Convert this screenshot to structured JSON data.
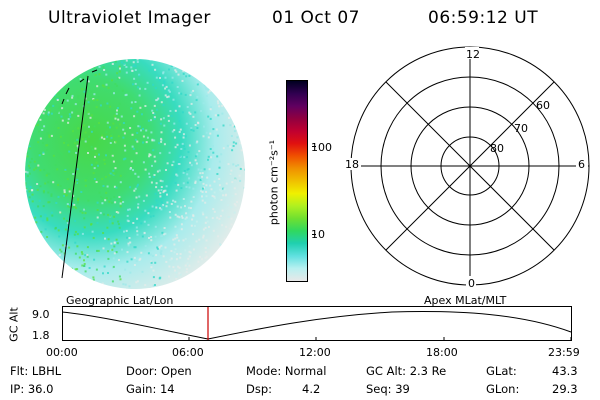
{
  "header": {
    "instrument": "Ultraviolet Imager",
    "date": "01 Oct 07",
    "time": "06:59:12 UT"
  },
  "colorbar": {
    "unit_label": "photon cm⁻²s⁻¹",
    "ticks": [
      "100",
      "10"
    ],
    "colors": [
      "#e8e8e8",
      "#b8f0f0",
      "#60e0e0",
      "#20d0b0",
      "#30d860",
      "#70e030",
      "#b0f020",
      "#f0f000",
      "#f0c000",
      "#f09000",
      "#f05000",
      "#e01010",
      "#c00030",
      "#900040",
      "#600060",
      "#300050",
      "#000020"
    ]
  },
  "polar_grid": {
    "mlt_labels": [
      "12",
      "18",
      "6",
      "0"
    ],
    "lat_labels": [
      "60",
      "70",
      "80"
    ]
  },
  "timeline": {
    "left_title": "Geographic Lat/Lon",
    "right_title": "Apex MLat/MLT",
    "y_axis_label": "GC Alt",
    "y_ticks": [
      "9.0",
      "1.8"
    ],
    "x_ticks": [
      "00:00",
      "06:00",
      "12:00",
      "18:00",
      "23:59"
    ],
    "marker_color": "#cc0000"
  },
  "info": {
    "filter": "Flt: LBHL",
    "ip": "IP: 36.0",
    "door": "Door: Open",
    "gain": "Gain: 14",
    "mode": "Mode: Normal",
    "dsp_label": "Dsp:",
    "dsp_value": "4.2",
    "gc_alt": "GC Alt: 2.3 Re",
    "seq": "Seq: 39",
    "glat": "GLat:",
    "glat_value": "43.3",
    "glon": "GLon:",
    "glon_value": "29.3"
  }
}
